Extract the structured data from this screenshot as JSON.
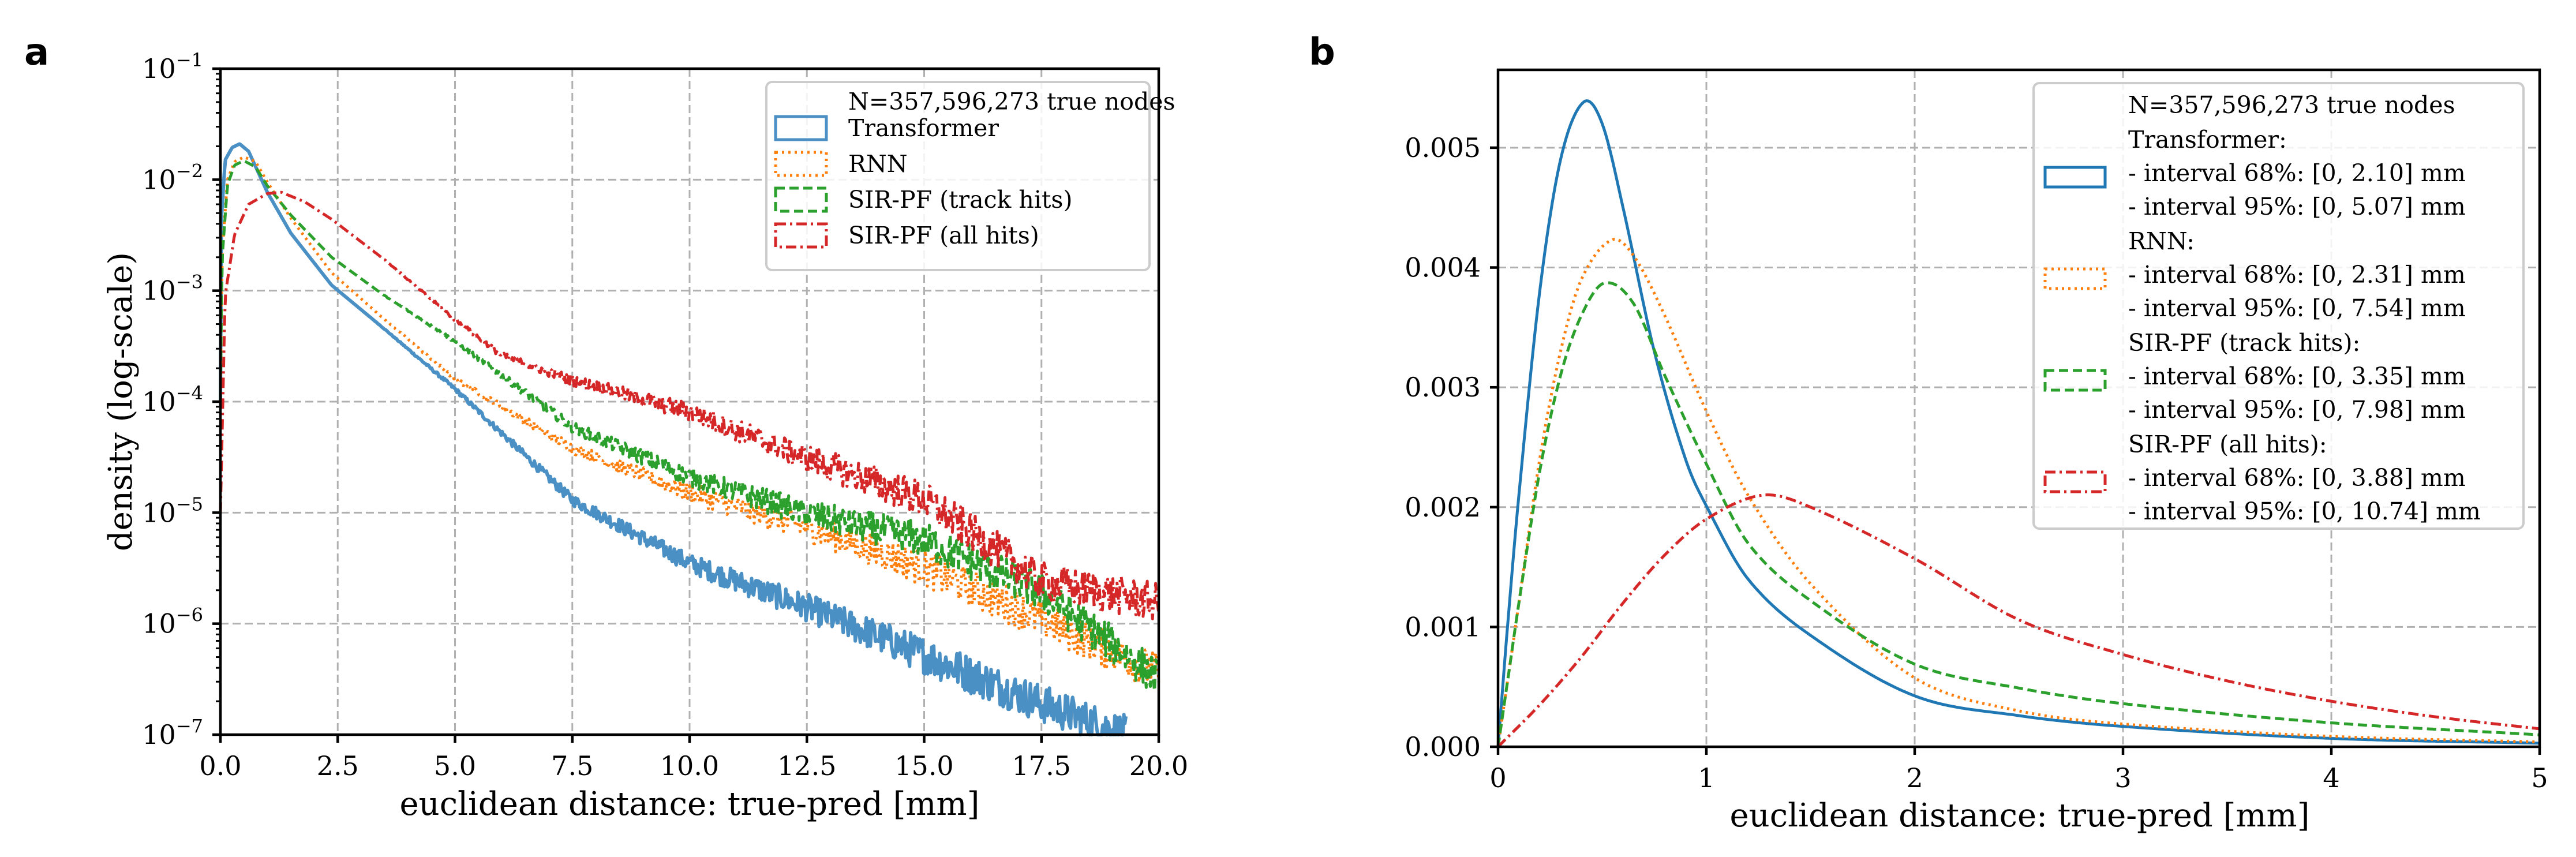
{
  "panels": [
    {
      "label": "a"
    },
    {
      "label": "b"
    }
  ],
  "chart_data": [
    {
      "panel": "a",
      "type": "line",
      "title": "",
      "xlabel": "euclidean distance: true-pred [mm]",
      "ylabel": "density (log-scale)",
      "xlim": [
        0,
        20
      ],
      "ylim": [
        1e-07,
        0.1
      ],
      "yscale": "log",
      "grid": true,
      "legend_position": "top-right",
      "legend_title": "N=357,596,273 true nodes",
      "xticks": [
        0.0,
        2.5,
        5.0,
        7.5,
        10.0,
        12.5,
        15.0,
        17.5,
        20.0
      ],
      "xtick_labels": [
        "0.0",
        "2.5",
        "5.0",
        "7.5",
        "10.0",
        "12.5",
        "15.0",
        "17.5",
        "20.0"
      ],
      "yticks": [
        1e-07,
        1e-06,
        1e-05,
        0.0001,
        0.001,
        0.01,
        0.1
      ],
      "ytick_labels": [
        {
          "base": "10",
          "exp": "−7"
        },
        {
          "base": "10",
          "exp": "−6"
        },
        {
          "base": "10",
          "exp": "−5"
        },
        {
          "base": "10",
          "exp": "−4"
        },
        {
          "base": "10",
          "exp": "−3"
        },
        {
          "base": "10",
          "exp": "−2"
        },
        {
          "base": "10",
          "exp": "−1"
        }
      ],
      "series": [
        {
          "name": "Transformer",
          "color": "#4a90c4",
          "style": "solid",
          "x": [
            0.0,
            0.02,
            0.1,
            0.25,
            0.41,
            0.6,
            1.0,
            1.5,
            2.37,
            3.5,
            5.0,
            7.5,
            10.0,
            12.5,
            15.0,
            17.5,
            19.3
          ],
          "y": [
            0.0001,
            0.0044,
            0.015,
            0.0195,
            0.021,
            0.018,
            0.0077,
            0.0033,
            0.00112,
            0.00045,
            0.00013,
            1.3e-05,
            3.5e-06,
            1.4e-06,
            5.2e-07,
            1.9e-07,
            1e-07
          ]
        },
        {
          "name": "RNN",
          "color": "#ff7f0e",
          "style": "dotted",
          "x": [
            0.0,
            0.03,
            0.15,
            0.3,
            0.5,
            0.75,
            1.0,
            1.5,
            2.37,
            3.5,
            5.0,
            7.5,
            10.0,
            12.5,
            15.0,
            17.5,
            20.0
          ],
          "y": [
            0.0001,
            0.002,
            0.01,
            0.0145,
            0.016,
            0.0145,
            0.0095,
            0.0045,
            0.00145,
            0.00055,
            0.00016,
            3.8e-05,
            1.5e-05,
            7.4e-06,
            3.2e-06,
            1.1e-06,
            3.6e-07
          ]
        },
        {
          "name": "SIR-PF (track hits)",
          "color": "#2ca02c",
          "style": "dashed",
          "x": [
            0.0,
            0.03,
            0.15,
            0.3,
            0.5,
            0.75,
            1.0,
            1.5,
            2.37,
            3.5,
            5.0,
            7.5,
            10.0,
            12.5,
            15.0,
            17.5,
            20.0
          ],
          "y": [
            0.0001,
            0.0018,
            0.009,
            0.0135,
            0.0148,
            0.013,
            0.0088,
            0.0048,
            0.002,
            0.0009,
            0.00035,
            5.9e-05,
            2.1e-05,
            9.8e-06,
            5.6e-06,
            1.9e-06,
            3.2e-07
          ]
        },
        {
          "name": "SIR-PF (all hits)",
          "color": "#d62728",
          "style": "dashdot",
          "x": [
            0.0,
            0.1,
            0.3,
            0.6,
            1.0,
            1.3,
            1.8,
            2.37,
            3.5,
            5.0,
            6.0,
            7.5,
            10.0,
            12.5,
            15.0,
            17.5,
            20.0
          ],
          "y": [
            1e-05,
            0.0009,
            0.0032,
            0.006,
            0.0075,
            0.0077,
            0.0063,
            0.0044,
            0.0019,
            0.00055,
            0.00026,
            0.000156,
            8.1e-05,
            3.1e-05,
            1.3e-05,
            2.4e-06,
            1.55e-06
          ]
        }
      ]
    },
    {
      "panel": "b",
      "type": "line",
      "title": "",
      "xlabel": "euclidean distance: true-pred [mm]",
      "ylabel": "",
      "xlim": [
        0,
        5
      ],
      "ylim": [
        0,
        0.00565
      ],
      "yscale": "linear",
      "grid": true,
      "legend_position": "top-right",
      "legend_title": "N=357,596,273 true nodes",
      "xticks": [
        0,
        1,
        2,
        3,
        4,
        5
      ],
      "xtick_labels": [
        "0",
        "1",
        "2",
        "3",
        "4",
        "5"
      ],
      "yticks": [
        0.0,
        0.001,
        0.002,
        0.003,
        0.004,
        0.005
      ],
      "ytick_labels": [
        "0.000",
        "0.001",
        "0.002",
        "0.003",
        "0.004",
        "0.005"
      ],
      "series": [
        {
          "name": "Transformer",
          "color": "#1f77b4",
          "style": "solid",
          "legend_lines": [
            "Transformer:",
            " - interval 68%: [0, 2.10] mm",
            " - interval 95%: [0, 5.07] mm"
          ],
          "interval_68": [
            0,
            2.1
          ],
          "interval_95": [
            0,
            5.07
          ],
          "x": [
            0,
            0.05,
            0.1,
            0.2,
            0.3,
            0.41,
            0.5,
            0.6,
            0.75,
            0.9,
            1.0,
            1.2,
            1.5,
            2.0,
            2.5,
            3.0,
            4.0,
            5.0
          ],
          "y": [
            0,
            0.0011,
            0.0021,
            0.0038,
            0.0049,
            0.00538,
            0.0052,
            0.0045,
            0.0033,
            0.0024,
            0.00201,
            0.0014,
            0.00093,
            0.000425,
            0.00026,
            0.00017,
            7e-05,
            3e-05
          ]
        },
        {
          "name": "RNN",
          "color": "#ff7f0e",
          "style": "dotted",
          "legend_lines": [
            "RNN:",
            " - interval 68%: [0, 2.31] mm",
            " - interval 95%: [0, 7.54] mm"
          ],
          "interval_68": [
            0,
            2.31
          ],
          "interval_95": [
            0,
            7.54
          ],
          "x": [
            0,
            0.05,
            0.1,
            0.2,
            0.3,
            0.4,
            0.545,
            0.65,
            0.8,
            1.0,
            1.2,
            1.5,
            2.0,
            2.5,
            3.0,
            4.0,
            5.0
          ],
          "y": [
            0,
            0.0006,
            0.0012,
            0.0024,
            0.0033,
            0.0039,
            0.00423,
            0.0041,
            0.0036,
            0.0028,
            0.0021,
            0.00136,
            0.000575,
            0.0003,
            0.00019,
            8.7e-05,
            4e-05
          ]
        },
        {
          "name": "SIR-PF (track hits)",
          "color": "#2ca02c",
          "style": "dashed",
          "legend_lines": [
            "SIR-PF (track hits):",
            " - interval 68%: [0, 3.35] mm",
            " - interval 95%: [0, 7.98] mm"
          ],
          "interval_68": [
            0,
            3.35
          ],
          "interval_95": [
            0,
            7.98
          ],
          "x": [
            0,
            0.05,
            0.1,
            0.2,
            0.3,
            0.4,
            0.51,
            0.65,
            0.8,
            1.0,
            1.2,
            1.5,
            2.0,
            2.5,
            3.0,
            4.0,
            5.0
          ],
          "y": [
            0,
            0.0006,
            0.0012,
            0.0023,
            0.0031,
            0.0036,
            0.00387,
            0.0037,
            0.0031,
            0.00236,
            0.0017,
            0.00122,
            0.00069,
            0.00049,
            0.00036,
            0.0002,
            0.0001
          ]
        },
        {
          "name": "SIR-PF (all hits)",
          "color": "#d62728",
          "style": "dashdot",
          "legend_lines": [
            "SIR-PF (all hits):",
            " - interval 68%: [0, 3.88] mm",
            " - interval 95%: [0, 10.74] mm"
          ],
          "interval_68": [
            0,
            3.88
          ],
          "interval_95": [
            0,
            10.74
          ],
          "x": [
            0,
            0.2,
            0.4,
            0.6,
            0.8,
            1.0,
            1.27,
            1.5,
            2.0,
            2.5,
            3.0,
            3.5,
            4.0,
            4.5,
            5.0
          ],
          "y": [
            0,
            0.00035,
            0.00075,
            0.0012,
            0.0016,
            0.0019,
            0.0021,
            0.002,
            0.00157,
            0.00106,
            0.00077,
            0.00055,
            0.00038,
            0.00025,
            0.00015
          ]
        }
      ]
    }
  ]
}
